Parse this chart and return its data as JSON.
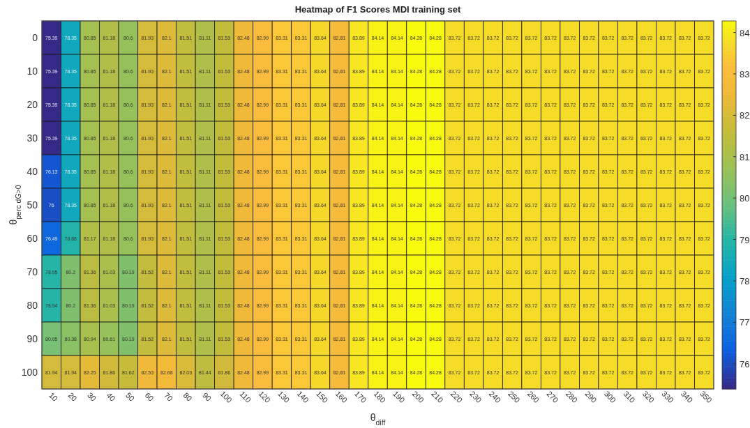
{
  "chart_data": {
    "type": "heatmap",
    "title": "Heatmap of F1 Scores MDI training set",
    "xlabel": "θ$_{diff}$",
    "ylabel": "θ$_{perc dG>0}$",
    "categories": [
      "10",
      "20",
      "30",
      "40",
      "50",
      "60",
      "70",
      "80",
      "90",
      "100",
      "110",
      "120",
      "130",
      "140",
      "150",
      "160",
      "170",
      "180",
      "190",
      "200",
      "210",
      "220",
      "230",
      "240",
      "250",
      "260",
      "270",
      "280",
      "290",
      "300",
      "310",
      "320",
      "330",
      "340",
      "350"
    ],
    "y_categories": [
      "0",
      "10",
      "20",
      "30",
      "40",
      "50",
      "60",
      "70",
      "80",
      "90",
      "100"
    ],
    "cells": [
      [
        75.39,
        78.35,
        80.85,
        81.18,
        80.6,
        81.93,
        82.1,
        81.51,
        81.11,
        81.53,
        82.48,
        82.99,
        83.31,
        83.31,
        83.64,
        82.81,
        83.89,
        84.14,
        84.14,
        84.28,
        84.28,
        83.72,
        83.72,
        83.72,
        83.72,
        83.72,
        83.72,
        83.72,
        83.72,
        83.72,
        83.72,
        83.72,
        83.72,
        83.72,
        83.72
      ],
      [
        75.39,
        78.35,
        80.85,
        81.18,
        80.6,
        81.93,
        82.1,
        81.51,
        81.11,
        81.53,
        82.48,
        82.99,
        83.31,
        83.31,
        83.64,
        82.81,
        83.89,
        84.14,
        84.14,
        84.28,
        84.28,
        83.72,
        83.72,
        83.72,
        83.72,
        83.72,
        83.72,
        83.72,
        83.72,
        83.72,
        83.72,
        83.72,
        83.72,
        83.72,
        83.72
      ],
      [
        75.39,
        78.35,
        80.85,
        81.18,
        80.6,
        81.93,
        82.1,
        81.51,
        81.11,
        81.53,
        82.48,
        82.99,
        83.31,
        83.31,
        83.64,
        82.81,
        83.89,
        84.14,
        84.14,
        84.28,
        84.28,
        83.72,
        83.72,
        83.72,
        83.72,
        83.72,
        83.72,
        83.72,
        83.72,
        83.72,
        83.72,
        83.72,
        83.72,
        83.72,
        83.72
      ],
      [
        75.39,
        78.35,
        80.85,
        81.18,
        80.6,
        81.93,
        82.1,
        81.51,
        81.11,
        81.53,
        82.48,
        82.99,
        83.31,
        83.31,
        83.64,
        82.81,
        83.89,
        84.14,
        84.14,
        84.28,
        84.28,
        83.72,
        83.72,
        83.72,
        83.72,
        83.72,
        83.72,
        83.72,
        83.72,
        83.72,
        83.72,
        83.72,
        83.72,
        83.72,
        83.72
      ],
      [
        76.13,
        78.35,
        80.85,
        81.18,
        80.6,
        81.93,
        82.1,
        81.51,
        81.11,
        81.53,
        82.48,
        82.99,
        83.31,
        83.31,
        83.64,
        82.81,
        83.89,
        84.14,
        84.14,
        84.28,
        84.28,
        83.72,
        83.72,
        83.72,
        83.72,
        83.72,
        83.72,
        83.72,
        83.72,
        83.72,
        83.72,
        83.72,
        83.72,
        83.72,
        83.72
      ],
      [
        76,
        78.35,
        80.85,
        81.18,
        80.6,
        81.93,
        82.1,
        81.51,
        81.11,
        81.53,
        82.48,
        82.99,
        83.31,
        83.31,
        83.64,
        82.81,
        83.89,
        84.14,
        84.14,
        84.28,
        84.28,
        83.72,
        83.72,
        83.72,
        83.72,
        83.72,
        83.72,
        83.72,
        83.72,
        83.72,
        83.72,
        83.72,
        83.72,
        83.72,
        83.72
      ],
      [
        76.49,
        78.88,
        81.17,
        81.18,
        80.6,
        81.93,
        82.1,
        81.51,
        81.11,
        81.53,
        82.48,
        82.99,
        83.31,
        83.31,
        83.64,
        82.81,
        83.89,
        84.14,
        84.14,
        84.28,
        84.28,
        83.72,
        83.72,
        83.72,
        83.72,
        83.72,
        83.72,
        83.72,
        83.72,
        83.72,
        83.72,
        83.72,
        83.72,
        83.72,
        83.72
      ],
      [
        78.95,
        80.2,
        81.36,
        81.03,
        80.19,
        81.52,
        82.1,
        81.51,
        81.11,
        81.53,
        82.48,
        82.99,
        83.31,
        83.31,
        83.64,
        82.81,
        83.89,
        84.14,
        84.14,
        84.28,
        84.28,
        83.72,
        83.72,
        83.72,
        83.72,
        83.72,
        83.72,
        83.72,
        83.72,
        83.72,
        83.72,
        83.72,
        83.72,
        83.72,
        83.72
      ],
      [
        78.94,
        80.2,
        81.36,
        81.03,
        80.19,
        81.52,
        82.1,
        81.51,
        81.11,
        81.53,
        82.48,
        82.99,
        83.31,
        83.31,
        83.64,
        82.81,
        83.89,
        84.14,
        84.14,
        84.28,
        84.28,
        83.72,
        83.72,
        83.72,
        83.72,
        83.72,
        83.72,
        83.72,
        83.72,
        83.72,
        83.72,
        83.72,
        83.72,
        83.72,
        83.72
      ],
      [
        80.05,
        80.38,
        80.94,
        80.61,
        80.19,
        81.52,
        82.1,
        81.51,
        81.11,
        81.53,
        82.48,
        82.99,
        83.31,
        83.31,
        83.64,
        82.81,
        83.89,
        84.14,
        84.14,
        84.28,
        84.28,
        83.72,
        83.72,
        83.72,
        83.72,
        83.72,
        83.72,
        83.72,
        83.72,
        83.72,
        83.72,
        83.72,
        83.72,
        83.72,
        83.72
      ],
      [
        81.94,
        81.94,
        82.25,
        81.86,
        81.62,
        82.53,
        82.68,
        82.03,
        81.44,
        81.86,
        82.48,
        82.99,
        83.31,
        83.31,
        83.64,
        82.81,
        83.89,
        84.14,
        84.14,
        84.28,
        84.28,
        83.72,
        83.72,
        83.72,
        83.72,
        83.72,
        83.72,
        83.72,
        83.72,
        83.72,
        83.72,
        83.72,
        83.72,
        83.72,
        83.72
      ]
    ],
    "data_labels": true,
    "clim": [
      75.39,
      84.28
    ],
    "cticks": [
      76,
      77,
      78,
      79,
      80,
      81,
      82,
      83,
      84
    ]
  }
}
